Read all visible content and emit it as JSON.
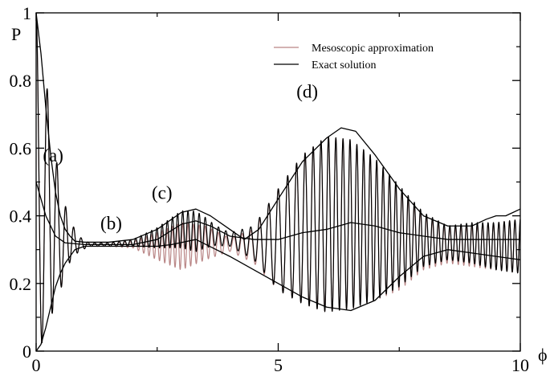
{
  "chart_data": {
    "type": "line",
    "title": "",
    "xlabel": "ϕ",
    "ylabel": "P",
    "xlim": [
      0,
      10
    ],
    "ylim": [
      0,
      1
    ],
    "xticks": [
      0,
      5,
      10
    ],
    "xtick_labels": [
      "0",
      "5",
      "10"
    ],
    "yticks": [
      0,
      0.2,
      0.4,
      0.6,
      0.8,
      1
    ],
    "ytick_labels": [
      "0",
      "0.2",
      "0.4",
      "0.6",
      "0.8",
      "1"
    ],
    "grid": false,
    "legend": {
      "position": "top-right",
      "frame": false
    },
    "series": [
      {
        "name": "Mesoscopic approximation",
        "color": "#b98585",
        "style": "oscillating",
        "mean": [
          [
            0,
            0.5
          ],
          [
            0.5,
            0.33
          ],
          [
            1,
            0.315
          ],
          [
            1.5,
            0.315
          ],
          [
            2,
            0.315
          ],
          [
            2.5,
            0.31
          ],
          [
            3,
            0.31
          ],
          [
            3.5,
            0.32
          ],
          [
            4,
            0.315
          ],
          [
            4.5,
            0.31
          ],
          [
            5,
            0.33
          ],
          [
            5.5,
            0.36
          ],
          [
            6,
            0.375
          ],
          [
            6.5,
            0.375
          ],
          [
            7,
            0.36
          ],
          [
            7.5,
            0.33
          ],
          [
            8,
            0.32
          ],
          [
            8.5,
            0.31
          ],
          [
            9,
            0.31
          ],
          [
            9.5,
            0.31
          ],
          [
            10,
            0.31
          ]
        ],
        "amplitude": [
          [
            0,
            0.5
          ],
          [
            0.1,
            0.45
          ],
          [
            0.3,
            0.3
          ],
          [
            0.5,
            0.15
          ],
          [
            0.7,
            0.06
          ],
          [
            0.9,
            0.02
          ],
          [
            1.1,
            0.005
          ],
          [
            1.5,
            0.005
          ],
          [
            2,
            0.01
          ],
          [
            2.5,
            0.04
          ],
          [
            3,
            0.07
          ],
          [
            3.5,
            0.05
          ],
          [
            4,
            0.02
          ],
          [
            4.5,
            0.05
          ],
          [
            5,
            0.15
          ],
          [
            5.5,
            0.22
          ],
          [
            6,
            0.26
          ],
          [
            6.5,
            0.25
          ],
          [
            7,
            0.21
          ],
          [
            7.5,
            0.15
          ],
          [
            8,
            0.08
          ],
          [
            8.5,
            0.05
          ],
          [
            9,
            0.06
          ],
          [
            9.5,
            0.07
          ],
          [
            10,
            0.08
          ]
        ],
        "frequency": [
          [
            0,
            4
          ],
          [
            1,
            7
          ],
          [
            2,
            9
          ],
          [
            3,
            9.5
          ],
          [
            4,
            6
          ],
          [
            5,
            5
          ],
          [
            6,
            6.5
          ],
          [
            7,
            7.5
          ],
          [
            8,
            8
          ],
          [
            9,
            9
          ],
          [
            10,
            9
          ]
        ]
      },
      {
        "name": "Exact solution",
        "color": "#000000",
        "style": "oscillating",
        "mean": [
          [
            0,
            0.5
          ],
          [
            0.5,
            0.33
          ],
          [
            1,
            0.315
          ],
          [
            1.5,
            0.315
          ],
          [
            2,
            0.32
          ],
          [
            2.5,
            0.335
          ],
          [
            3,
            0.36
          ],
          [
            3.5,
            0.35
          ],
          [
            4,
            0.33
          ],
          [
            4.5,
            0.32
          ],
          [
            5,
            0.33
          ],
          [
            5.5,
            0.36
          ],
          [
            6,
            0.375
          ],
          [
            6.5,
            0.375
          ],
          [
            7,
            0.36
          ],
          [
            7.5,
            0.34
          ],
          [
            8,
            0.33
          ],
          [
            8.5,
            0.32
          ],
          [
            9,
            0.32
          ],
          [
            9.5,
            0.31
          ],
          [
            10,
            0.31
          ]
        ],
        "amplitude": [
          [
            0,
            0.5
          ],
          [
            0.1,
            0.45
          ],
          [
            0.3,
            0.3
          ],
          [
            0.5,
            0.15
          ],
          [
            0.7,
            0.06
          ],
          [
            0.9,
            0.02
          ],
          [
            1.1,
            0.005
          ],
          [
            1.5,
            0.005
          ],
          [
            2,
            0.01
          ],
          [
            2.5,
            0.03
          ],
          [
            3,
            0.055
          ],
          [
            3.3,
            0.06
          ],
          [
            3.7,
            0.03
          ],
          [
            4,
            0.02
          ],
          [
            4.5,
            0.05
          ],
          [
            5,
            0.15
          ],
          [
            5.5,
            0.22
          ],
          [
            6,
            0.26
          ],
          [
            6.5,
            0.25
          ],
          [
            7,
            0.21
          ],
          [
            7.5,
            0.15
          ],
          [
            8,
            0.08
          ],
          [
            8.5,
            0.05
          ],
          [
            9,
            0.06
          ],
          [
            9.5,
            0.07
          ],
          [
            10,
            0.08
          ]
        ],
        "frequency": [
          [
            0,
            4
          ],
          [
            1,
            7
          ],
          [
            2,
            9
          ],
          [
            3,
            9.5
          ],
          [
            4,
            6
          ],
          [
            5,
            5
          ],
          [
            6,
            6.5
          ],
          [
            7,
            7.5
          ],
          [
            8,
            8
          ],
          [
            9,
            9
          ],
          [
            10,
            9
          ]
        ]
      },
      {
        "name": "",
        "color": "#000000",
        "style": "envelope-upper",
        "points": [
          [
            0,
            1
          ],
          [
            0.1,
            0.88
          ],
          [
            0.2,
            0.72
          ],
          [
            0.3,
            0.58
          ],
          [
            0.4,
            0.47
          ],
          [
            0.5,
            0.4
          ],
          [
            0.6,
            0.36
          ],
          [
            0.7,
            0.34
          ],
          [
            0.8,
            0.325
          ],
          [
            1,
            0.322
          ],
          [
            1.5,
            0.322
          ],
          [
            2,
            0.33
          ],
          [
            2.5,
            0.36
          ],
          [
            3,
            0.41
          ],
          [
            3.3,
            0.42
          ],
          [
            3.6,
            0.4
          ],
          [
            4,
            0.36
          ],
          [
            4.3,
            0.33
          ],
          [
            4.6,
            0.36
          ],
          [
            5,
            0.45
          ],
          [
            5.5,
            0.56
          ],
          [
            6,
            0.63
          ],
          [
            6.3,
            0.66
          ],
          [
            6.6,
            0.65
          ],
          [
            7,
            0.58
          ],
          [
            7.5,
            0.48
          ],
          [
            8,
            0.4
          ],
          [
            8.5,
            0.37
          ],
          [
            9,
            0.37
          ],
          [
            9.3,
            0.39
          ],
          [
            9.5,
            0.4
          ],
          [
            9.7,
            0.4
          ],
          [
            10,
            0.42
          ]
        ]
      },
      {
        "name": "",
        "color": "#000000",
        "style": "envelope-lower",
        "points": [
          [
            0,
            0
          ],
          [
            0.1,
            0.02
          ],
          [
            0.2,
            0.07
          ],
          [
            0.3,
            0.13
          ],
          [
            0.4,
            0.19
          ],
          [
            0.5,
            0.23
          ],
          [
            0.6,
            0.26
          ],
          [
            0.7,
            0.28
          ],
          [
            0.8,
            0.3
          ],
          [
            1,
            0.31
          ],
          [
            1.5,
            0.31
          ],
          [
            2,
            0.31
          ],
          [
            2.5,
            0.31
          ],
          [
            2.8,
            0.315
          ],
          [
            3.3,
            0.33
          ],
          [
            4,
            0.28
          ],
          [
            4.5,
            0.24
          ],
          [
            5,
            0.2
          ],
          [
            5.5,
            0.16
          ],
          [
            6,
            0.13
          ],
          [
            6.5,
            0.12
          ],
          [
            7,
            0.15
          ],
          [
            7.5,
            0.22
          ],
          [
            8,
            0.28
          ],
          [
            8.5,
            0.3
          ],
          [
            9,
            0.29
          ],
          [
            9.5,
            0.28
          ],
          [
            10,
            0.27
          ]
        ]
      },
      {
        "name": "",
        "color": "#000000",
        "style": "envelope-mean",
        "points": [
          [
            0,
            0.5
          ],
          [
            0.2,
            0.4
          ],
          [
            0.4,
            0.34
          ],
          [
            0.6,
            0.32
          ],
          [
            1,
            0.315
          ],
          [
            2,
            0.315
          ],
          [
            2.5,
            0.33
          ],
          [
            3,
            0.375
          ],
          [
            3.3,
            0.385
          ],
          [
            3.6,
            0.37
          ],
          [
            4,
            0.34
          ],
          [
            4.5,
            0.33
          ],
          [
            5,
            0.33
          ],
          [
            5.5,
            0.35
          ],
          [
            6,
            0.36
          ],
          [
            6.5,
            0.38
          ],
          [
            7,
            0.37
          ],
          [
            7.5,
            0.35
          ],
          [
            8,
            0.34
          ],
          [
            8.5,
            0.33
          ],
          [
            9,
            0.33
          ],
          [
            9.5,
            0.33
          ],
          [
            10,
            0.33
          ]
        ]
      }
    ],
    "annotations": [
      {
        "text": "(a)",
        "x": 0.35,
        "y": 0.56
      },
      {
        "text": "(b)",
        "x": 1.55,
        "y": 0.36
      },
      {
        "text": "(c)",
        "x": 2.6,
        "y": 0.45
      },
      {
        "text": "(d)",
        "x": 5.6,
        "y": 0.75
      }
    ]
  }
}
